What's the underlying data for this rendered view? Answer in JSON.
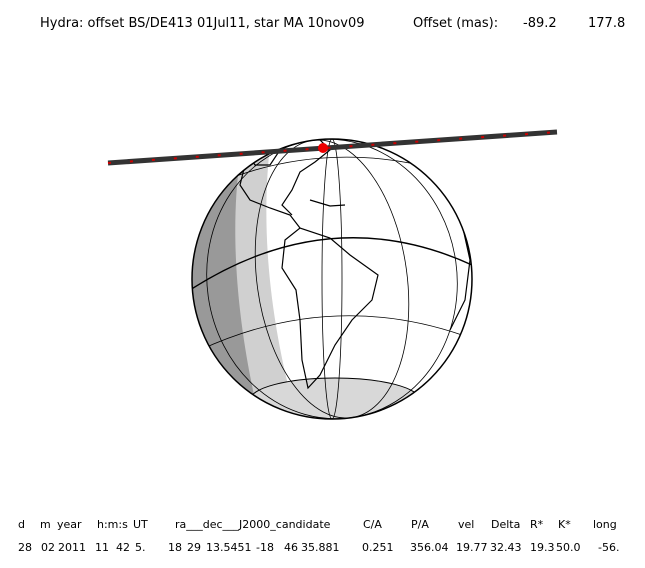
{
  "header": {
    "title": "Hydra: offset BS/DE413 01Jul11, star MA 10nov09",
    "offset_label": "Offset (mas):",
    "offset_values": [
      "-89.2",
      "177.8"
    ]
  },
  "table": {
    "columns": [
      "d",
      "m",
      "year",
      "h:m:s",
      "UT",
      "ra___dec___J2000_candidate",
      "C/A",
      "P/A",
      "vel",
      "Delta",
      "R*",
      "K*",
      "long"
    ],
    "row": [
      "28",
      "02",
      "2011",
      "11",
      "42",
      "5.",
      "18",
      "29",
      "13.5451",
      "-18",
      "46",
      "35.881",
      "0.251",
      "356.04",
      "19.77",
      "32.43",
      "19.3",
      "50.0",
      "-56."
    ]
  }
}
